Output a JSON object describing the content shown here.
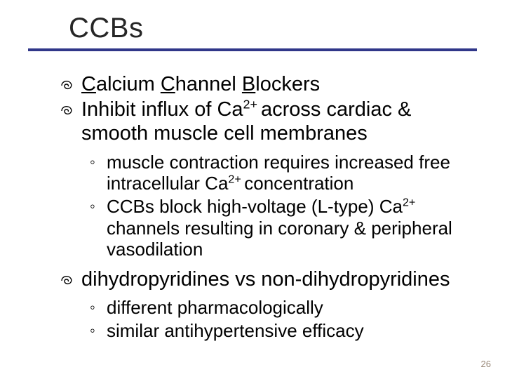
{
  "title": "CCBs",
  "colors": {
    "rule": "#303789",
    "title_text": "#262626",
    "body_text": "#000000",
    "slidenum": "#9a897a",
    "background": "#ffffff"
  },
  "typography": {
    "title_fontsize_pt": 30,
    "lvl1_fontsize_pt": 22,
    "lvl2_fontsize_pt": 20,
    "font_family": "Arial"
  },
  "bullets": [
    {
      "type": "lvl1",
      "runs": [
        {
          "t": "C",
          "u": true
        },
        {
          "t": "alcium "
        },
        {
          "t": "C",
          "u": true
        },
        {
          "t": "hannel "
        },
        {
          "t": "B",
          "u": true
        },
        {
          "t": "lockers"
        }
      ]
    },
    {
      "type": "lvl1",
      "runs": [
        {
          "t": "Inhibit influx of Ca"
        },
        {
          "t": "2+ ",
          "sup": true
        },
        {
          "t": "across cardiac & smooth muscle cell membranes"
        }
      ]
    },
    {
      "type": "lvl2",
      "runs": [
        {
          "t": "muscle contraction requires increased free intracellular Ca"
        },
        {
          "t": "2+ ",
          "sup": true
        },
        {
          "t": "concentration"
        }
      ]
    },
    {
      "type": "lvl2",
      "runs": [
        {
          "t": "CCBs block high-voltage (L-type) Ca"
        },
        {
          "t": "2+",
          "sup": true
        },
        {
          "t": " channels resulting in coronary & peripheral vasodilation"
        }
      ]
    },
    {
      "type": "lvl1",
      "runs": [
        {
          "t": "dihydropyridines vs non-dihydropyridines"
        }
      ]
    },
    {
      "type": "lvl2",
      "runs": [
        {
          "t": "different pharmacologically"
        }
      ]
    },
    {
      "type": "lvl2",
      "runs": [
        {
          "t": "similar antihypertensive efficacy"
        }
      ]
    }
  ],
  "lvl2_marker": "◦",
  "slide_number": "26"
}
